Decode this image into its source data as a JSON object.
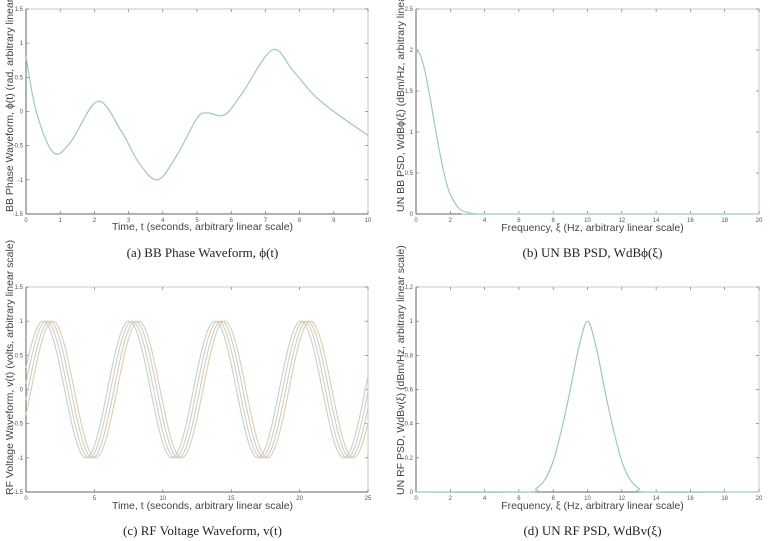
{
  "panels": [
    {
      "id": "a",
      "caption": "(a) BB Phase Waveform, ϕ(t)",
      "xlabel": "Time, t (seconds, arbitrary linear scale)",
      "ylabel": "BB Phase Waveform, ϕ(t) (rad, arbitrary linear scale)"
    },
    {
      "id": "b",
      "caption": "(b) UN BB PSD, WdBϕ(ξ)",
      "xlabel": "Frequency, ξ (Hz, arbitrary linear scale)",
      "ylabel": "UN BB PSD, WdBϕ(ξ) (dBm/Hz, arbitrary linear scale)"
    },
    {
      "id": "c",
      "caption": "(c) RF Voltage Waveform, v(t)",
      "xlabel": "Time, t (seconds, arbitrary linear scale)",
      "ylabel": "RF Voltage Waveform, v(t) (volts, arbitrary linear scale)"
    },
    {
      "id": "d",
      "caption": "(d) UN RF PSD, WdBv(ξ)",
      "xlabel": "Frequency, ξ (Hz, arbitrary linear scale)",
      "ylabel": "UN RF PSD, WdBv(ξ) (dBm/Hz, arbitrary linear scale)"
    }
  ],
  "colors": {
    "line": "#9ec6cc",
    "rf_line_a": "#e8c9a8",
    "rf_line_b": "#b9d3d9",
    "axis": "#666666"
  },
  "chart_data": [
    {
      "type": "line",
      "title": "(a) BB Phase Waveform, ϕ(t)",
      "xlabel": "Time, t (seconds, arbitrary linear scale)",
      "ylabel": "BB Phase Waveform, ϕ(t) (rad, arbitrary linear scale)",
      "xlim": [
        0,
        10
      ],
      "ylim": [
        -1.5,
        1.5
      ],
      "xticks": [
        0,
        1,
        2,
        3,
        4,
        5,
        6,
        7,
        8,
        9,
        10
      ],
      "yticks": [
        -1.5,
        -1,
        -0.5,
        0,
        0.5,
        1,
        1.5
      ],
      "grid": false,
      "x": [
        0,
        0.3,
        0.8,
        1.3,
        2.1,
        2.8,
        3.3,
        3.85,
        4.4,
        5.0,
        5.3,
        5.8,
        6.3,
        7.2,
        7.8,
        8.4,
        9.0,
        10.0
      ],
      "y": [
        0.8,
        0.0,
        -0.6,
        -0.45,
        0.15,
        -0.3,
        -0.75,
        -1.0,
        -0.65,
        -0.1,
        -0.02,
        -0.05,
        0.25,
        0.9,
        0.6,
        0.25,
        0.0,
        -0.35
      ]
    },
    {
      "type": "line",
      "title": "(b) UN BB PSD, WdBϕ(ξ)",
      "xlabel": "Frequency, ξ (Hz, arbitrary linear scale)",
      "ylabel": "UN BB PSD, WdBϕ(ξ) (dBm/Hz, arbitrary linear scale)",
      "xlim": [
        0,
        20
      ],
      "ylim": [
        0,
        2.5
      ],
      "xticks": [
        0,
        2,
        4,
        6,
        8,
        10,
        12,
        14,
        16,
        18,
        20
      ],
      "yticks": [
        0,
        0.5,
        1,
        1.5,
        2,
        2.5
      ],
      "grid": false,
      "x": [
        0,
        0.25,
        0.5,
        0.75,
        1.0,
        1.25,
        1.5,
        1.75,
        2.0,
        2.5,
        3.0,
        3.5,
        4,
        20
      ],
      "y": [
        2.0,
        1.94,
        1.76,
        1.5,
        1.2,
        0.9,
        0.63,
        0.4,
        0.24,
        0.07,
        0.02,
        0.0,
        0.0,
        0.0
      ]
    },
    {
      "type": "line",
      "title": "(c) RF Voltage Waveform, v(t)",
      "xlabel": "Time, t (seconds, arbitrary linear scale)",
      "ylabel": "RF Voltage Waveform, v(t) (volts, arbitrary linear scale)",
      "xlim": [
        0,
        25
      ],
      "ylim": [
        -1.5,
        1.5
      ],
      "xticks": [
        0,
        5,
        10,
        15,
        20,
        25
      ],
      "yticks": [
        -1.5,
        -1,
        -0.5,
        0,
        0.5,
        1,
        1.5
      ],
      "grid": false,
      "description": "Sinusoid of amplitude 1 with period ~6.3 s, drawn as multiple slightly phase-shifted overlapping traces",
      "series": [
        {
          "name": "v(t)",
          "amplitude": 1.0,
          "period": 6.28,
          "peaks_t": [
            1.6,
            7.9,
            14.2,
            20.4
          ],
          "troughs_t": [
            4.8,
            11.0,
            17.3,
            23.6
          ]
        }
      ]
    },
    {
      "type": "line",
      "title": "(d) UN RF PSD, WdBv(ξ)",
      "xlabel": "Frequency, ξ (Hz, arbitrary linear scale)",
      "ylabel": "UN RF PSD, WdBv(ξ) (dBm/Hz, arbitrary linear scale)",
      "xlim": [
        0,
        20
      ],
      "ylim": [
        0,
        1.2
      ],
      "xticks": [
        0,
        2,
        4,
        6,
        8,
        10,
        12,
        14,
        16,
        18,
        20
      ],
      "yticks": [
        0,
        0.2,
        0.4,
        0.6,
        0.8,
        1,
        1.2
      ],
      "grid": false,
      "x": [
        0,
        6.5,
        7.0,
        7.5,
        8.0,
        8.5,
        9.0,
        9.5,
        10.0,
        10.5,
        11.0,
        11.5,
        12.0,
        12.5,
        13.0,
        13.5,
        20
      ],
      "y": [
        0,
        0.0,
        0.02,
        0.07,
        0.18,
        0.37,
        0.6,
        0.85,
        1.0,
        0.85,
        0.6,
        0.37,
        0.18,
        0.07,
        0.02,
        0.0,
        0
      ]
    }
  ]
}
